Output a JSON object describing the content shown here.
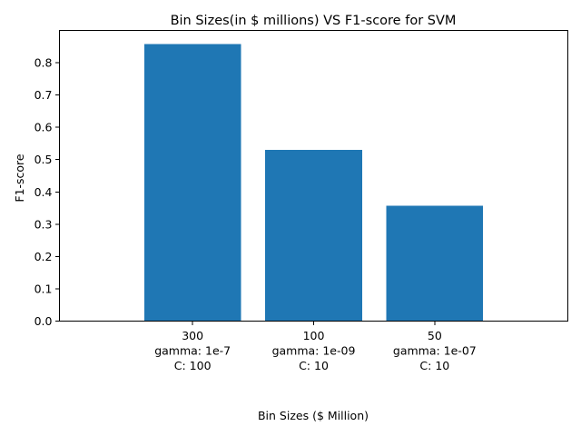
{
  "chart_data": {
    "type": "bar",
    "title": "Bin Sizes(in $ millions) VS F1-score for SVM",
    "xlabel": "Bin Sizes ($ Million)",
    "ylabel": "F1-score",
    "categories": [
      [
        "300",
        "gamma: 1e-7",
        "C: 100"
      ],
      [
        "100",
        "gamma: 1e-09",
        "C: 10"
      ],
      [
        "50",
        "gamma: 1e-07",
        "C: 10"
      ]
    ],
    "values": [
      0.858,
      0.53,
      0.357
    ],
    "ylim": [
      0,
      0.9
    ],
    "yticks": [
      0.0,
      0.1,
      0.2,
      0.3,
      0.4,
      0.5,
      0.6,
      0.7,
      0.8
    ],
    "ytick_labels": [
      "0.0",
      "0.1",
      "0.2",
      "0.3",
      "0.4",
      "0.5",
      "0.6",
      "0.7",
      "0.8"
    ],
    "bar_color": "#1f77b4",
    "grid": false,
    "legend": "none"
  }
}
